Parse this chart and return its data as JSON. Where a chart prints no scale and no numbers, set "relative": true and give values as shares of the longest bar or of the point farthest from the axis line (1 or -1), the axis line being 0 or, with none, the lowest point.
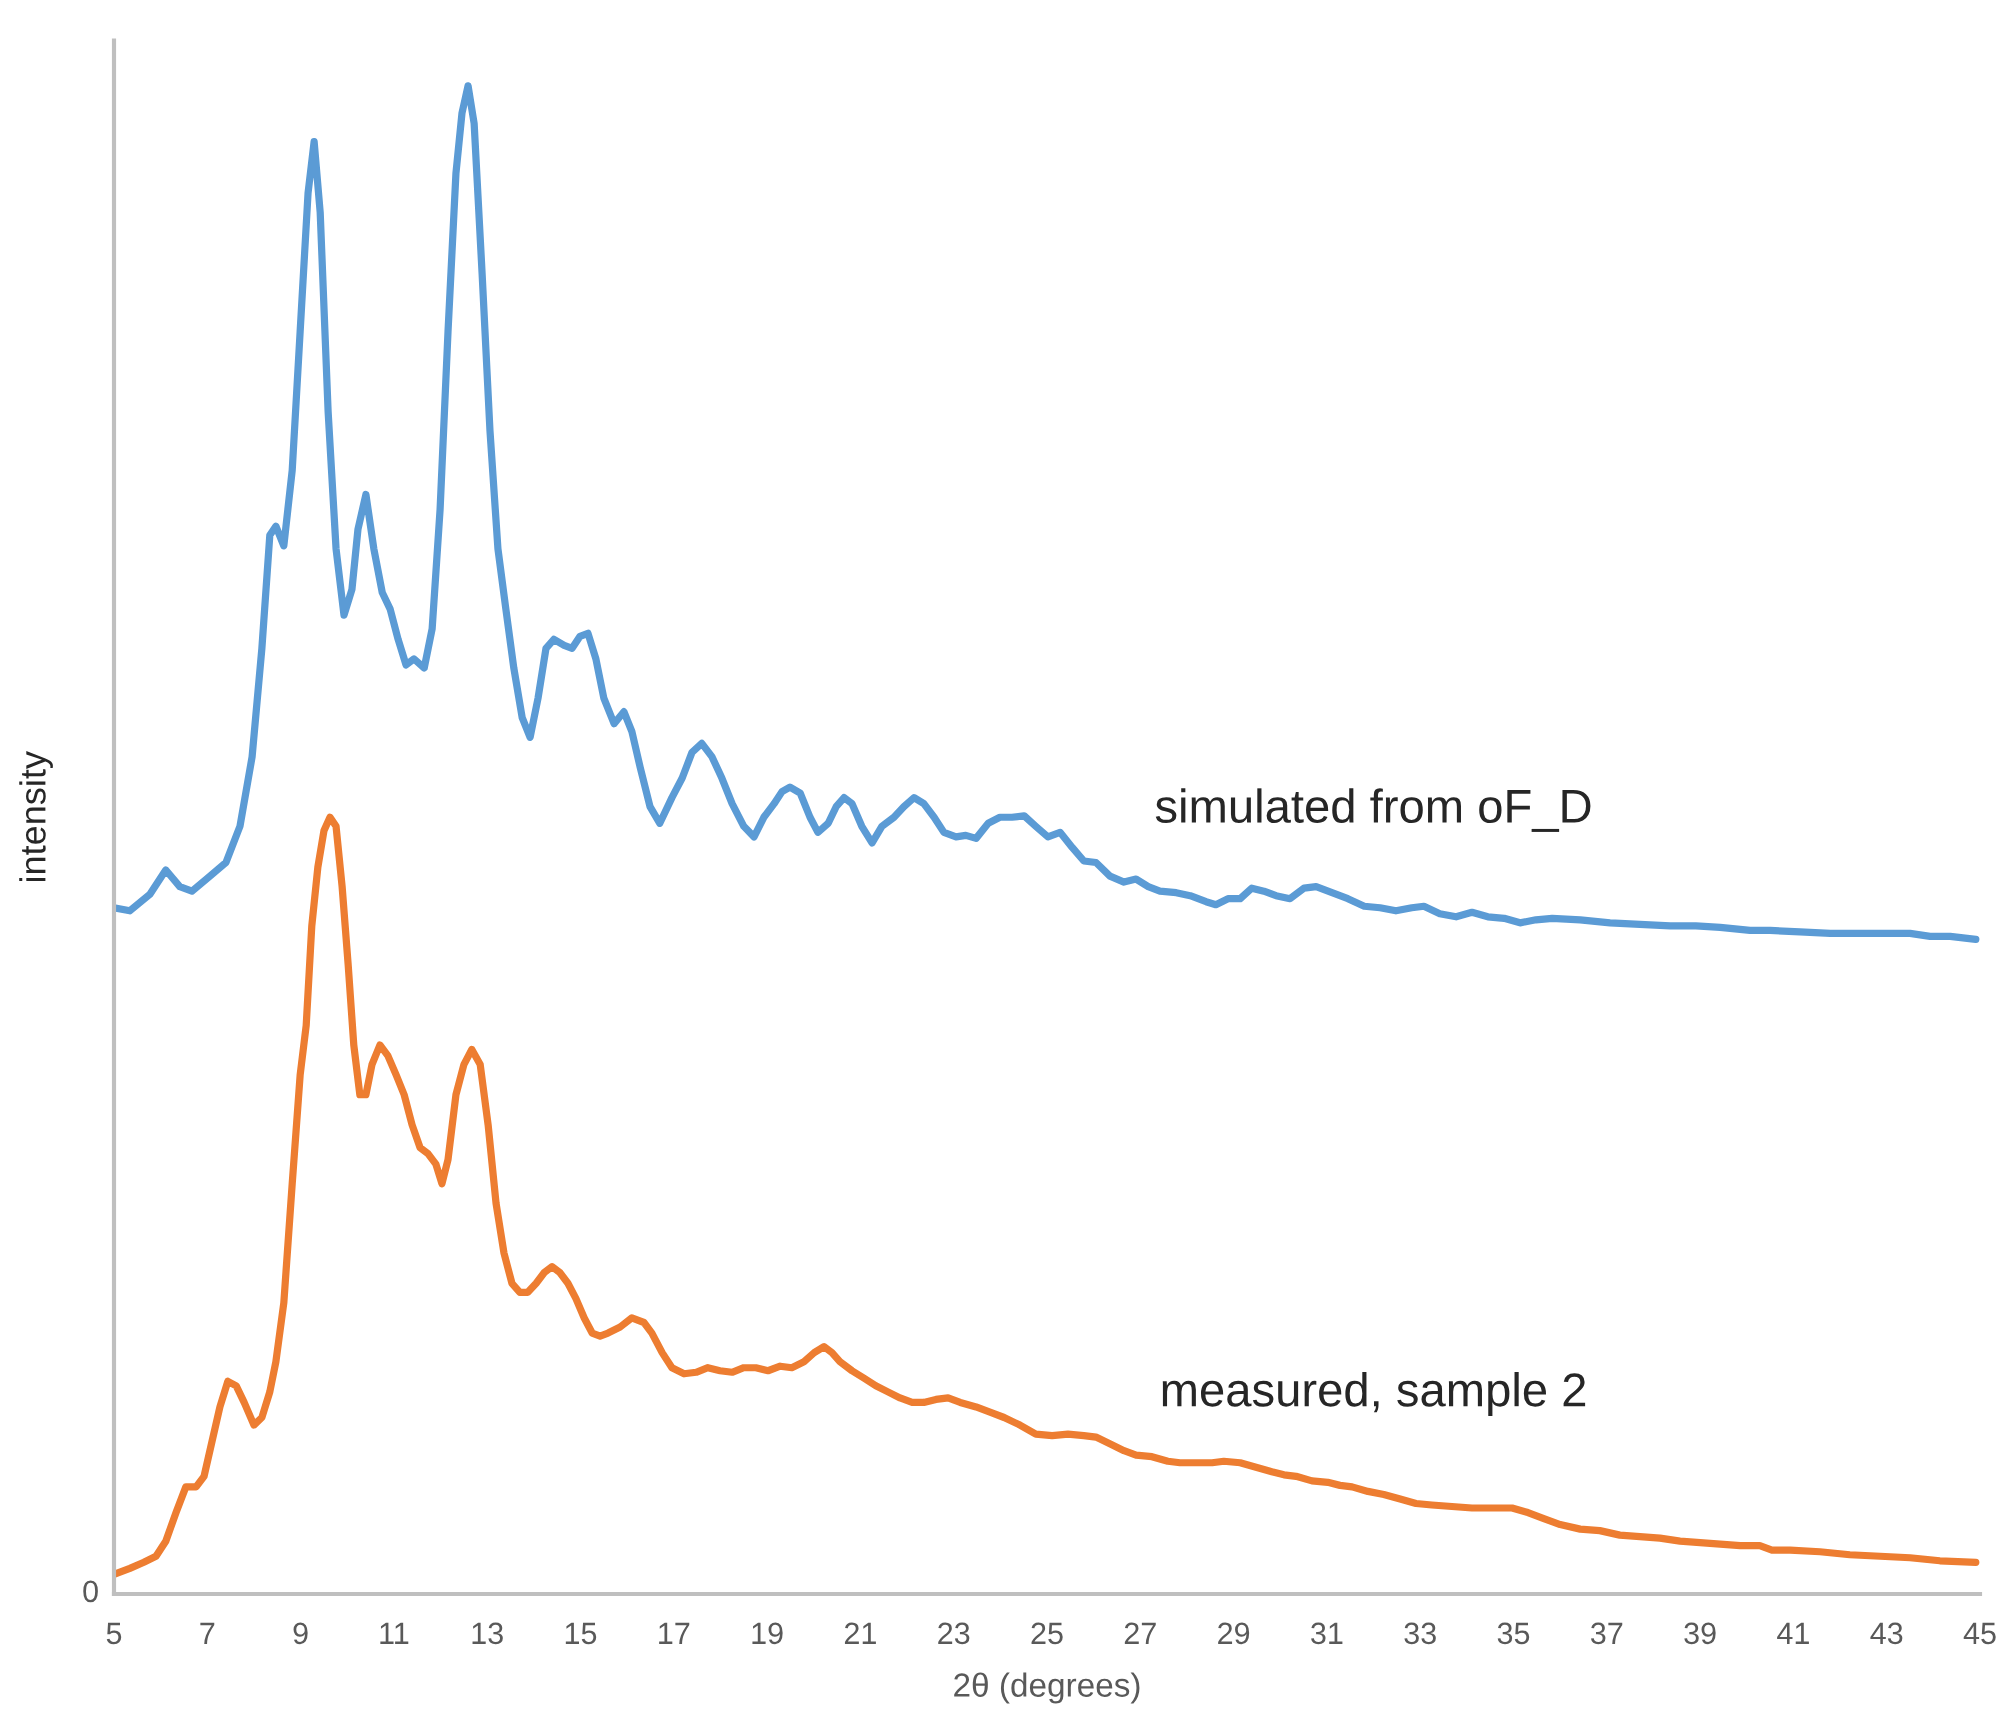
{
  "chart_data": {
    "type": "line",
    "relative": true,
    "xlabel": "2θ (degrees)",
    "ylabel": "intensity",
    "xlim": [
      5,
      45
    ],
    "xticks": [
      5,
      7,
      9,
      11,
      13,
      15,
      17,
      19,
      21,
      23,
      25,
      27,
      29,
      31,
      33,
      35,
      37,
      39,
      41,
      43,
      45
    ],
    "annotations": [
      "0"
    ],
    "legend": false,
    "grid": false,
    "series": [
      {
        "name": "simulated from oF_D",
        "color": "#5b9bd5",
        "x": [
          5.0,
          5.34,
          5.77,
          6.11,
          6.41,
          6.67,
          7.06,
          7.4,
          7.7,
          7.96,
          8.17,
          8.34,
          8.47,
          8.64,
          8.82,
          8.99,
          9.16,
          9.29,
          9.42,
          9.59,
          9.76,
          9.93,
          10.1,
          10.23,
          10.4,
          10.57,
          10.75,
          10.92,
          11.09,
          11.26,
          11.43,
          11.65,
          11.82,
          11.99,
          12.16,
          12.33,
          12.46,
          12.59,
          12.72,
          12.89,
          13.06,
          13.23,
          13.4,
          13.57,
          13.75,
          13.92,
          14.09,
          14.26,
          14.43,
          14.65,
          14.82,
          14.99,
          15.16,
          15.33,
          15.5,
          15.72,
          15.93,
          16.1,
          16.28,
          16.49,
          16.7,
          16.96,
          17.18,
          17.39,
          17.6,
          17.82,
          18.03,
          18.25,
          18.5,
          18.72,
          18.93,
          19.15,
          19.32,
          19.49,
          19.71,
          19.92,
          20.09,
          20.31,
          20.48,
          20.65,
          20.82,
          21.03,
          21.25,
          21.46,
          21.72,
          21.93,
          22.15,
          22.36,
          22.58,
          22.79,
          23.05,
          23.26,
          23.48,
          23.74,
          23.99,
          24.25,
          24.51,
          24.76,
          25.02,
          25.28,
          25.54,
          25.79,
          26.05,
          26.35,
          26.65,
          26.91,
          27.17,
          27.42,
          27.77,
          28.07,
          28.41,
          28.62,
          28.88,
          29.14,
          29.39,
          29.65,
          29.91,
          30.21,
          30.51,
          30.77,
          31.11,
          31.45,
          31.8,
          32.14,
          32.48,
          32.82,
          33.08,
          33.42,
          33.77,
          34.11,
          34.45,
          34.8,
          35.14,
          35.48,
          35.83,
          36.43,
          37.07,
          37.71,
          38.36,
          38.91,
          39.43,
          40.07,
          40.5,
          41.14,
          41.79,
          42.21,
          42.86,
          43.5,
          43.93,
          44.36,
          44.91
        ],
        "values": [
          0.455,
          0.453,
          0.464,
          0.48,
          0.469,
          0.466,
          0.476,
          0.485,
          0.509,
          0.555,
          0.627,
          0.702,
          0.708,
          0.695,
          0.745,
          0.837,
          0.929,
          0.963,
          0.916,
          0.784,
          0.693,
          0.649,
          0.666,
          0.706,
          0.729,
          0.693,
          0.664,
          0.653,
          0.633,
          0.616,
          0.62,
          0.614,
          0.64,
          0.719,
          0.837,
          0.942,
          0.982,
          1.0,
          0.975,
          0.876,
          0.771,
          0.693,
          0.653,
          0.614,
          0.581,
          0.568,
          0.594,
          0.627,
          0.633,
          0.629,
          0.627,
          0.635,
          0.637,
          0.62,
          0.594,
          0.577,
          0.585,
          0.572,
          0.548,
          0.522,
          0.511,
          0.528,
          0.541,
          0.558,
          0.564,
          0.555,
          0.541,
          0.524,
          0.509,
          0.502,
          0.515,
          0.524,
          0.532,
          0.535,
          0.531,
          0.515,
          0.505,
          0.511,
          0.522,
          0.528,
          0.524,
          0.509,
          0.498,
          0.509,
          0.515,
          0.522,
          0.528,
          0.524,
          0.515,
          0.505,
          0.502,
          0.503,
          0.501,
          0.511,
          0.515,
          0.515,
          0.516,
          0.509,
          0.502,
          0.505,
          0.495,
          0.486,
          0.485,
          0.476,
          0.472,
          0.474,
          0.469,
          0.466,
          0.465,
          0.463,
          0.459,
          0.457,
          0.461,
          0.461,
          0.468,
          0.466,
          0.463,
          0.461,
          0.468,
          0.469,
          0.465,
          0.461,
          0.456,
          0.455,
          0.453,
          0.455,
          0.456,
          0.451,
          0.449,
          0.452,
          0.449,
          0.448,
          0.445,
          0.447,
          0.448,
          0.447,
          0.445,
          0.444,
          0.443,
          0.443,
          0.442,
          0.44,
          0.44,
          0.439,
          0.438,
          0.438,
          0.438,
          0.438,
          0.436,
          0.436,
          0.434
        ]
      },
      {
        "name": "measured, sample 2",
        "color": "#ed7d31",
        "x": [
          5.0,
          5.34,
          5.64,
          5.9,
          6.11,
          6.33,
          6.54,
          6.76,
          6.93,
          7.1,
          7.27,
          7.44,
          7.62,
          7.79,
          8.0,
          8.17,
          8.34,
          8.47,
          8.64,
          8.82,
          8.99,
          9.12,
          9.24,
          9.37,
          9.5,
          9.63,
          9.76,
          9.89,
          10.02,
          10.14,
          10.27,
          10.4,
          10.53,
          10.7,
          10.87,
          11.05,
          11.22,
          11.39,
          11.56,
          11.73,
          11.9,
          12.03,
          12.16,
          12.33,
          12.5,
          12.67,
          12.85,
          13.02,
          13.19,
          13.36,
          13.53,
          13.7,
          13.87,
          14.05,
          14.22,
          14.39,
          14.56,
          14.73,
          14.9,
          15.08,
          15.25,
          15.42,
          15.59,
          15.85,
          16.1,
          16.36,
          16.53,
          16.75,
          16.96,
          17.22,
          17.48,
          17.73,
          17.99,
          18.25,
          18.5,
          18.76,
          19.02,
          19.28,
          19.53,
          19.79,
          20.01,
          20.22,
          20.39,
          20.56,
          20.82,
          21.08,
          21.33,
          21.59,
          21.85,
          22.11,
          22.36,
          22.62,
          22.88,
          23.14,
          23.48,
          23.82,
          24.08,
          24.42,
          24.76,
          25.11,
          25.45,
          25.79,
          26.05,
          26.39,
          26.65,
          26.91,
          27.25,
          27.59,
          27.85,
          28.19,
          28.54,
          28.79,
          29.14,
          29.48,
          29.82,
          30.08,
          30.34,
          30.68,
          31.02,
          31.28,
          31.54,
          31.88,
          32.22,
          32.57,
          32.91,
          33.25,
          33.68,
          34.11,
          34.54,
          34.97,
          35.31,
          35.65,
          36.0,
          36.43,
          36.85,
          37.28,
          37.71,
          38.14,
          38.57,
          39.0,
          39.43,
          39.86,
          40.28,
          40.54,
          40.93,
          41.57,
          42.21,
          42.86,
          43.5,
          44.14,
          44.91
        ],
        "values": [
          0.013,
          0.017,
          0.021,
          0.025,
          0.035,
          0.054,
          0.071,
          0.071,
          0.078,
          0.101,
          0.124,
          0.141,
          0.138,
          0.127,
          0.112,
          0.117,
          0.134,
          0.154,
          0.193,
          0.272,
          0.344,
          0.377,
          0.443,
          0.482,
          0.506,
          0.515,
          0.509,
          0.469,
          0.417,
          0.364,
          0.331,
          0.331,
          0.351,
          0.364,
          0.357,
          0.344,
          0.331,
          0.311,
          0.296,
          0.292,
          0.285,
          0.272,
          0.288,
          0.331,
          0.351,
          0.361,
          0.351,
          0.311,
          0.259,
          0.226,
          0.206,
          0.2,
          0.2,
          0.206,
          0.213,
          0.217,
          0.213,
          0.206,
          0.196,
          0.183,
          0.173,
          0.171,
          0.173,
          0.177,
          0.183,
          0.18,
          0.173,
          0.16,
          0.15,
          0.146,
          0.147,
          0.15,
          0.148,
          0.147,
          0.15,
          0.15,
          0.148,
          0.151,
          0.15,
          0.154,
          0.16,
          0.164,
          0.16,
          0.154,
          0.148,
          0.143,
          0.138,
          0.134,
          0.13,
          0.127,
          0.127,
          0.129,
          0.13,
          0.127,
          0.124,
          0.12,
          0.117,
          0.112,
          0.106,
          0.105,
          0.106,
          0.105,
          0.104,
          0.099,
          0.095,
          0.092,
          0.091,
          0.088,
          0.087,
          0.087,
          0.087,
          0.088,
          0.087,
          0.084,
          0.081,
          0.079,
          0.078,
          0.075,
          0.074,
          0.072,
          0.071,
          0.068,
          0.066,
          0.063,
          0.06,
          0.059,
          0.058,
          0.057,
          0.057,
          0.057,
          0.054,
          0.05,
          0.046,
          0.043,
          0.042,
          0.039,
          0.038,
          0.037,
          0.035,
          0.034,
          0.033,
          0.032,
          0.032,
          0.029,
          0.029,
          0.028,
          0.026,
          0.025,
          0.024,
          0.022,
          0.021
        ]
      }
    ]
  }
}
